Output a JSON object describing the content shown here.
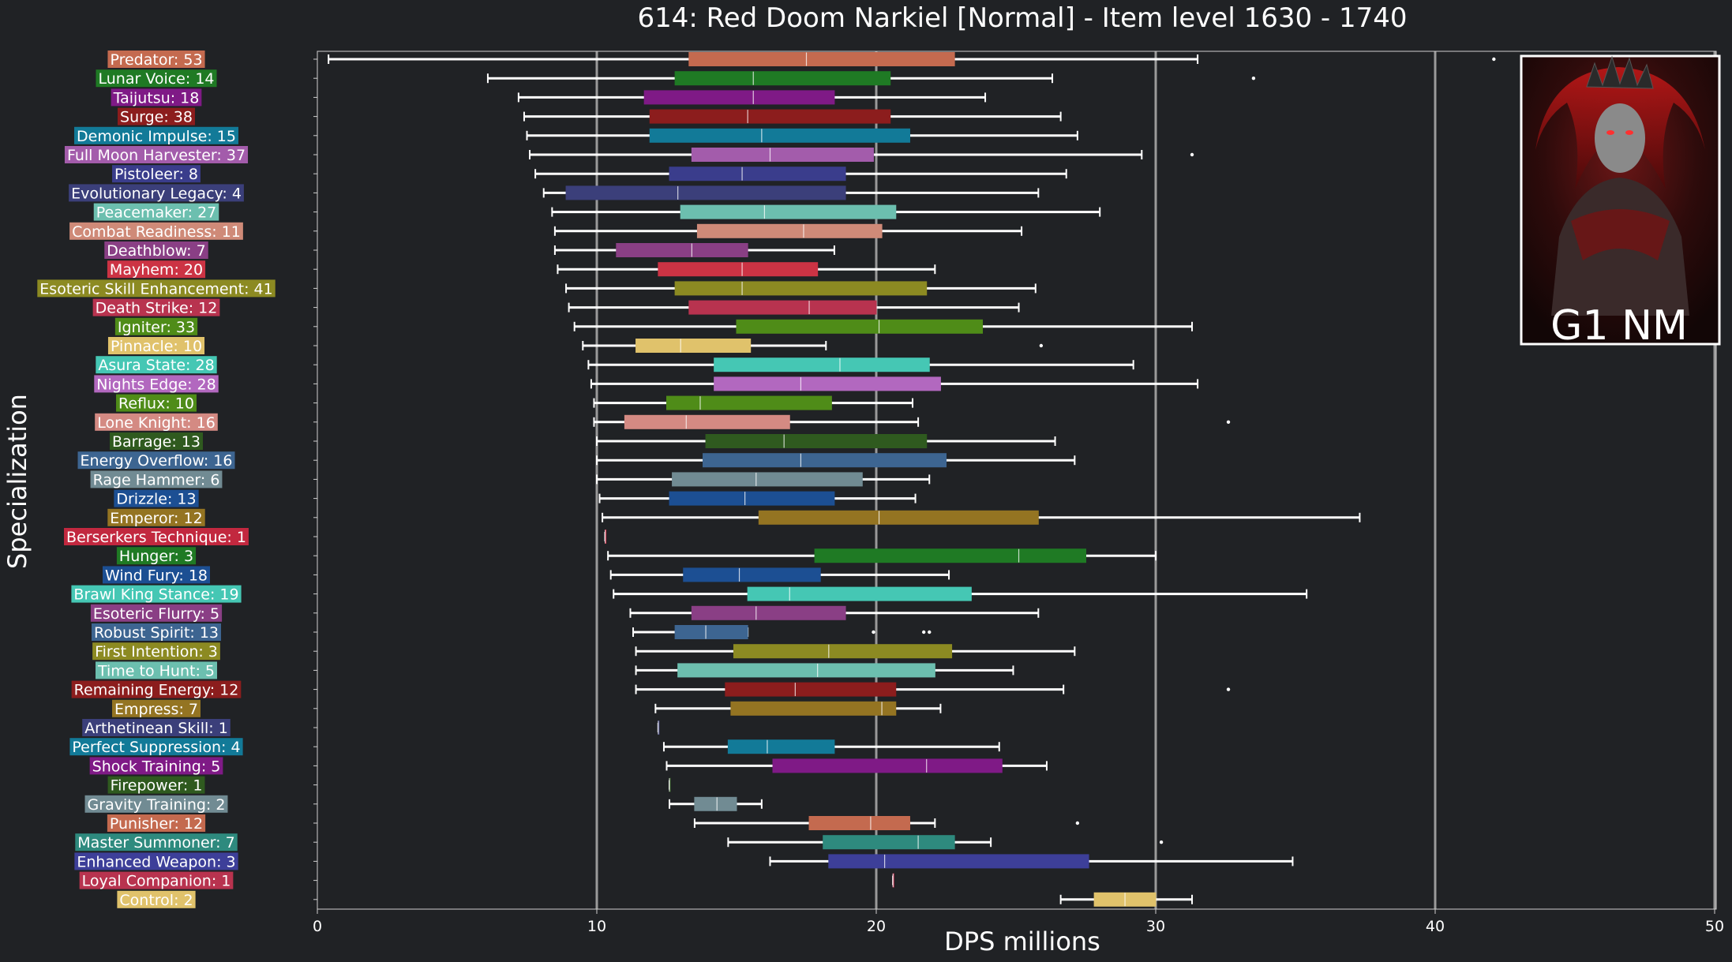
{
  "chart_data": {
    "type": "boxplot",
    "title": "614: Red Doom Narkiel [Normal] - Item level 1630 - 1740",
    "xlabel": "DPS millions",
    "ylabel": "Specialization",
    "xlim": [
      0,
      50
    ],
    "xticks": [
      0,
      10,
      20,
      30,
      40,
      50
    ],
    "grid": "vertical lines at 10, 20, 30, 40, 50",
    "orientation": "horizontal",
    "badge": "G1 NM",
    "series": [
      {
        "label": "Predator: 53",
        "color": "#c46a4f",
        "min": 0.4,
        "q1": 13.3,
        "median": 17.5,
        "q3": 22.8,
        "max": 31.5,
        "outliers": [
          42.1
        ]
      },
      {
        "label": "Lunar Voice: 14",
        "color": "#1f7a24",
        "min": 6.1,
        "q1": 12.8,
        "median": 15.6,
        "q3": 20.5,
        "max": 26.3,
        "outliers": [
          33.5
        ]
      },
      {
        "label": "Taijutsu: 18",
        "color": "#7f1a86",
        "min": 7.2,
        "q1": 11.7,
        "median": 15.6,
        "q3": 18.5,
        "max": 23.9,
        "outliers": []
      },
      {
        "label": "Surge: 38",
        "color": "#8c1d1d",
        "min": 7.4,
        "q1": 11.9,
        "median": 15.4,
        "q3": 20.5,
        "max": 26.6,
        "outliers": []
      },
      {
        "label": "Demonic Impulse: 15",
        "color": "#127a98",
        "min": 7.5,
        "q1": 11.9,
        "median": 15.9,
        "q3": 21.2,
        "max": 27.2,
        "outliers": []
      },
      {
        "label": "Full Moon Harvester: 37",
        "color": "#a35cab",
        "min": 7.6,
        "q1": 13.4,
        "median": 16.2,
        "q3": 19.9,
        "max": 29.5,
        "outliers": [
          31.3
        ]
      },
      {
        "label": "Pistoleer: 8",
        "color": "#3a3d8c",
        "min": 7.8,
        "q1": 12.6,
        "median": 15.2,
        "q3": 18.9,
        "max": 26.8,
        "outliers": []
      },
      {
        "label": "Evolutionary Legacy: 4",
        "color": "#3b3f7a",
        "min": 8.1,
        "q1": 8.9,
        "median": 12.9,
        "q3": 18.9,
        "max": 25.8,
        "outliers": []
      },
      {
        "label": "Peacemaker: 27",
        "color": "#6cbfaf",
        "min": 8.4,
        "q1": 13.0,
        "median": 16.0,
        "q3": 20.7,
        "max": 28.0,
        "outliers": []
      },
      {
        "label": "Combat Readiness: 11",
        "color": "#cf8a78",
        "min": 8.5,
        "q1": 13.6,
        "median": 17.4,
        "q3": 20.2,
        "max": 25.2,
        "outliers": []
      },
      {
        "label": "Deathblow: 7",
        "color": "#8a3f85",
        "min": 8.5,
        "q1": 10.7,
        "median": 13.4,
        "q3": 15.4,
        "max": 18.5,
        "outliers": []
      },
      {
        "label": "Mayhem: 20",
        "color": "#cc3344",
        "min": 8.6,
        "q1": 12.2,
        "median": 15.2,
        "q3": 17.9,
        "max": 22.1,
        "outliers": []
      },
      {
        "label": "Esoteric Skill Enhancement: 41",
        "color": "#8c8a22",
        "min": 8.9,
        "q1": 12.8,
        "median": 15.2,
        "q3": 21.8,
        "max": 25.7,
        "outliers": []
      },
      {
        "label": "Death Strike: 12",
        "color": "#b8334f",
        "min": 9.0,
        "q1": 13.3,
        "median": 17.6,
        "q3": 20.0,
        "max": 25.1,
        "outliers": []
      },
      {
        "label": "Igniter: 33",
        "color": "#4f8c18",
        "min": 9.2,
        "q1": 15.0,
        "median": 20.1,
        "q3": 23.8,
        "max": 31.3,
        "outliers": []
      },
      {
        "label": "Pinnacle: 10",
        "color": "#e0c26b",
        "min": 9.5,
        "q1": 11.4,
        "median": 13.0,
        "q3": 15.5,
        "max": 18.2,
        "outliers": [
          25.9
        ]
      },
      {
        "label": "Asura State: 28",
        "color": "#45c7b4",
        "min": 9.7,
        "q1": 14.2,
        "median": 18.7,
        "q3": 21.9,
        "max": 29.2,
        "outliers": []
      },
      {
        "label": "Nights Edge: 28",
        "color": "#b268bf",
        "min": 9.8,
        "q1": 14.2,
        "median": 17.3,
        "q3": 22.3,
        "max": 31.5,
        "outliers": []
      },
      {
        "label": "Reflux: 10",
        "color": "#4f8c18",
        "min": 9.9,
        "q1": 12.5,
        "median": 13.7,
        "q3": 18.4,
        "max": 21.3,
        "outliers": []
      },
      {
        "label": "Lone Knight: 16",
        "color": "#d48a83",
        "min": 9.9,
        "q1": 11.0,
        "median": 13.2,
        "q3": 16.9,
        "max": 21.5,
        "outliers": [
          32.6
        ]
      },
      {
        "label": "Barrage: 13",
        "color": "#2f5a1f",
        "min": 10.0,
        "q1": 13.9,
        "median": 16.7,
        "q3": 21.8,
        "max": 26.4,
        "outliers": []
      },
      {
        "label": "Energy Overflow: 16",
        "color": "#3d6591",
        "min": 10.0,
        "q1": 13.8,
        "median": 17.3,
        "q3": 22.5,
        "max": 27.1,
        "outliers": []
      },
      {
        "label": "Rage Hammer: 6",
        "color": "#718b93",
        "min": 10.0,
        "q1": 12.7,
        "median": 15.7,
        "q3": 19.5,
        "max": 21.9,
        "outliers": []
      },
      {
        "label": "Drizzle: 13",
        "color": "#1c4f93",
        "min": 10.1,
        "q1": 12.6,
        "median": 15.3,
        "q3": 18.5,
        "max": 21.4,
        "outliers": []
      },
      {
        "label": "Emperor: 12",
        "color": "#947422",
        "min": 10.2,
        "q1": 15.8,
        "median": 20.1,
        "q3": 25.8,
        "max": 37.3,
        "outliers": []
      },
      {
        "label": "Berserkers Technique: 1",
        "color": "#c2283f",
        "min": 10.3,
        "q1": 10.3,
        "median": 10.3,
        "q3": 10.3,
        "max": 10.3,
        "outliers": []
      },
      {
        "label": "Hunger: 3",
        "color": "#1f7a24",
        "min": 10.4,
        "q1": 17.8,
        "median": 25.1,
        "q3": 27.5,
        "max": 30.0,
        "outliers": []
      },
      {
        "label": "Wind Fury: 18",
        "color": "#1c4f93",
        "min": 10.5,
        "q1": 13.1,
        "median": 15.1,
        "q3": 18.0,
        "max": 22.6,
        "outliers": []
      },
      {
        "label": "Brawl King Stance: 19",
        "color": "#45c7b4",
        "min": 10.6,
        "q1": 15.4,
        "median": 16.9,
        "q3": 23.4,
        "max": 35.4,
        "outliers": []
      },
      {
        "label": "Esoteric Flurry: 5",
        "color": "#8a3f85",
        "min": 11.2,
        "q1": 13.4,
        "median": 15.7,
        "q3": 18.9,
        "max": 25.8,
        "outliers": []
      },
      {
        "label": "Robust Spirit: 13",
        "color": "#3d6591",
        "min": 11.3,
        "q1": 12.8,
        "median": 13.9,
        "q3": 15.4,
        "max": 15.4,
        "outliers": [
          19.9,
          21.7,
          21.9
        ]
      },
      {
        "label": "First Intention: 3",
        "color": "#8c8a22",
        "min": 11.4,
        "q1": 14.9,
        "median": 18.3,
        "q3": 22.7,
        "max": 27.1,
        "outliers": []
      },
      {
        "label": "Time to Hunt: 5",
        "color": "#6cbfaf",
        "min": 11.4,
        "q1": 12.9,
        "median": 17.9,
        "q3": 22.1,
        "max": 24.9,
        "outliers": []
      },
      {
        "label": "Remaining Energy: 12",
        "color": "#8c1d1d",
        "min": 11.4,
        "q1": 14.6,
        "median": 17.1,
        "q3": 20.7,
        "max": 26.7,
        "outliers": [
          32.6
        ]
      },
      {
        "label": "Empress: 7",
        "color": "#947422",
        "min": 12.1,
        "q1": 14.8,
        "median": 20.2,
        "q3": 20.7,
        "max": 22.3,
        "outliers": []
      },
      {
        "label": "Arthetinean Skill: 1",
        "color": "#3b3f7a",
        "min": 12.2,
        "q1": 12.2,
        "median": 12.2,
        "q3": 12.2,
        "max": 12.2,
        "outliers": []
      },
      {
        "label": "Perfect Suppression: 4",
        "color": "#127a98",
        "min": 12.4,
        "q1": 14.7,
        "median": 16.1,
        "q3": 18.5,
        "max": 24.4,
        "outliers": []
      },
      {
        "label": "Shock Training: 5",
        "color": "#7f1a86",
        "min": 12.5,
        "q1": 16.3,
        "median": 21.8,
        "q3": 24.5,
        "max": 26.1,
        "outliers": []
      },
      {
        "label": "Firepower: 1",
        "color": "#2f5a1f",
        "min": 12.6,
        "q1": 12.6,
        "median": 12.6,
        "q3": 12.6,
        "max": 12.6,
        "outliers": []
      },
      {
        "label": "Gravity Training: 2",
        "color": "#718b93",
        "min": 12.6,
        "q1": 13.5,
        "median": 14.3,
        "q3": 15.0,
        "max": 15.9,
        "outliers": []
      },
      {
        "label": "Punisher: 12",
        "color": "#c46a4f",
        "min": 13.5,
        "q1": 17.6,
        "median": 19.8,
        "q3": 21.2,
        "max": 22.1,
        "outliers": [
          27.2
        ]
      },
      {
        "label": "Master Summoner: 7",
        "color": "#2e8a7e",
        "min": 14.7,
        "q1": 18.1,
        "median": 21.5,
        "q3": 22.8,
        "max": 24.1,
        "outliers": [
          30.2
        ]
      },
      {
        "label": "Enhanced Weapon: 3",
        "color": "#3d3f99",
        "min": 16.2,
        "q1": 18.3,
        "median": 20.3,
        "q3": 27.6,
        "max": 34.9,
        "outliers": []
      },
      {
        "label": "Loyal Companion: 1",
        "color": "#b8334f",
        "min": 20.6,
        "q1": 20.6,
        "median": 20.6,
        "q3": 20.6,
        "max": 20.6,
        "outliers": []
      },
      {
        "label": "Control: 2",
        "color": "#e0c26b",
        "min": 26.6,
        "q1": 27.8,
        "median": 28.9,
        "q3": 30.0,
        "max": 31.3,
        "outliers": []
      }
    ]
  }
}
